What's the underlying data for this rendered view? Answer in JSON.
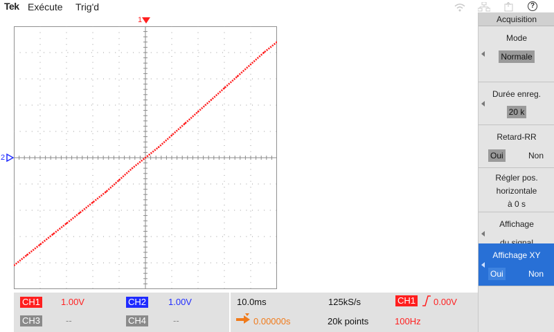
{
  "topbar": {
    "logo": "Tek",
    "run_state": "Exécute",
    "trigger_state": "Trig'd",
    "help_label": "?"
  },
  "markers": {
    "ch1_trigger_position": "1",
    "ch2_ground_level": "2"
  },
  "menu": {
    "title": "Acquisition",
    "mode": {
      "label": "Mode",
      "value": "Normale"
    },
    "record_length": {
      "label": "Durée enreg.",
      "value": "20 k"
    },
    "delay": {
      "label": "Retard-RR",
      "yes": "Oui",
      "no": "Non",
      "selected": "Oui"
    },
    "set_horizontal": {
      "line1": "Régler pos.",
      "line2": "horizontale",
      "line3": "à 0 s"
    },
    "signal_display": {
      "line1": "Affichage",
      "line2": "du signal"
    },
    "xy_display": {
      "label": "Affichage XY",
      "yes": "Oui",
      "no": "Non",
      "selected": "Oui"
    }
  },
  "bottom": {
    "ch1": {
      "label": "CH1",
      "scale": "1.00V",
      "color": "#ff1f1f"
    },
    "ch2": {
      "label": "CH2",
      "scale": "1.00V",
      "color": "#1f2bff"
    },
    "ch3": {
      "label": "CH3",
      "scale": "--",
      "color": "#8a8a8a"
    },
    "ch4": {
      "label": "CH4",
      "scale": "--",
      "color": "#8a8a8a"
    },
    "timebase": "10.0ms",
    "sample_rate": "125kS/s",
    "trigger_source": "CH1",
    "trigger_level": "0.00V",
    "horizontal_position": "0.00000s",
    "record_points": "20k points",
    "trigger_frequency": "100Hz"
  },
  "colors": {
    "ch1": "#ff1f1f",
    "ch2": "#1f2bff",
    "menu_highlight": "#2870d6",
    "horizontal_accent": "#f07a1a"
  },
  "chart_data": {
    "type": "line",
    "title": "",
    "xlabel": "",
    "ylabel": "",
    "xlim": [
      -5,
      5
    ],
    "ylim": [
      -5,
      5
    ],
    "grid": true,
    "series": [
      {
        "color": "#ff1f1f",
        "x": [
          -5,
          -4.5,
          -4,
          -3.5,
          -3,
          -2.5,
          -2,
          -1.5,
          -1,
          -0.5,
          0,
          0.5,
          1,
          1.5,
          2,
          2.5,
          3,
          3.5,
          4,
          4.5,
          5
        ],
        "y": [
          -4.1,
          -3.7,
          -3.3,
          -2.9,
          -2.5,
          -2.1,
          -1.7,
          -1.3,
          -0.85,
          -0.4,
          0,
          0.4,
          0.85,
          1.3,
          1.75,
          2.2,
          2.65,
          3.1,
          3.55,
          4.0,
          4.4
        ]
      }
    ]
  }
}
